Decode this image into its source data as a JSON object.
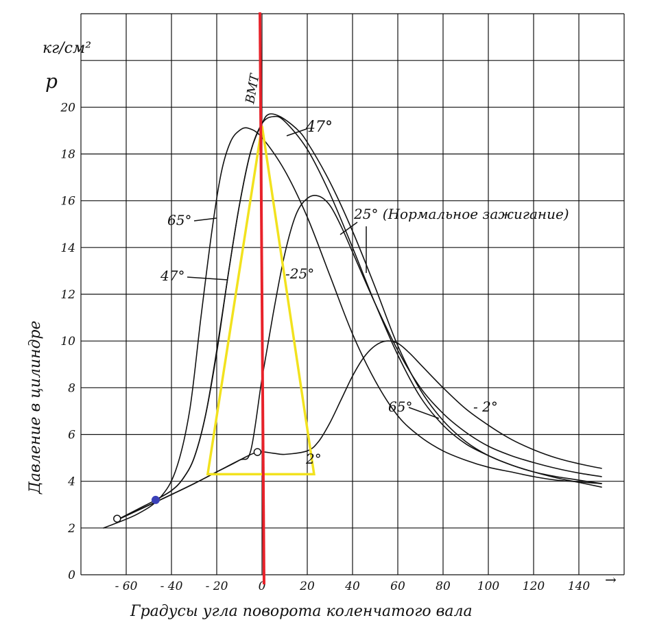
{
  "chart_data": {
    "type": "line",
    "units_label": "кг/см²",
    "p_label": "p",
    "ylabel": "Давление в цилиндре",
    "xlabel": "Градусы угла поворота коленчатого вала",
    "tdc_label": "ВМТ",
    "xlim": [
      -80,
      160
    ],
    "ylim": [
      0,
      24
    ],
    "x_ticks": [
      -60,
      -40,
      -20,
      0,
      20,
      40,
      60,
      80,
      100,
      120,
      140
    ],
    "x_tick_labels": [
      "- 60",
      "- 40",
      "- 20",
      "0",
      "20",
      "40",
      "60",
      "80",
      "100",
      "120",
      "140"
    ],
    "y_ticks": [
      0,
      2,
      4,
      6,
      8,
      10,
      12,
      14,
      16,
      18,
      20
    ],
    "y_tick_labels": [
      "0",
      "2",
      "4",
      "6",
      "8",
      "10",
      "12",
      "14",
      "16",
      "18",
      "20"
    ],
    "axis_arrow": "→",
    "grid": true,
    "tdc_line": {
      "x": 0,
      "color": "#e8222a"
    },
    "series": [
      {
        "name": "65°",
        "color": "#111111",
        "x": [
          -70,
          -55,
          -45,
          -38,
          -32,
          -27,
          -22,
          -18,
          -14,
          -10,
          -6,
          0,
          10,
          20,
          30,
          40,
          50,
          60,
          70,
          80,
          90,
          100,
          110,
          120,
          130,
          150
        ],
        "y": [
          2.0,
          2.6,
          3.3,
          4.5,
          7.0,
          11.0,
          14.8,
          17.2,
          18.5,
          19.0,
          19.1,
          18.7,
          17.3,
          15.3,
          12.8,
          10.3,
          8.3,
          6.8,
          5.9,
          5.3,
          4.9,
          4.6,
          4.4,
          4.2,
          4.05,
          3.9
        ]
      },
      {
        "name": "47°",
        "color": "#111111",
        "x": [
          -65,
          -55,
          -47,
          -40,
          -35,
          -30,
          -25,
          -20,
          -15,
          -10,
          -5,
          0,
          5,
          10,
          20,
          30,
          40,
          50,
          60,
          70,
          80,
          90,
          100,
          110,
          120,
          130,
          140,
          150
        ],
        "y": [
          2.3,
          2.8,
          3.2,
          3.6,
          4.1,
          5.0,
          6.8,
          9.5,
          12.8,
          15.8,
          18.1,
          19.3,
          19.6,
          19.4,
          18.2,
          16.3,
          14.0,
          11.6,
          9.4,
          7.6,
          6.4,
          5.6,
          5.1,
          4.7,
          4.4,
          4.2,
          4.05,
          3.9
        ]
      },
      {
        "name": "25° (Нормальное зажигание)",
        "color": "#111111",
        "x": [
          -65,
          -45,
          -30,
          -20,
          -10,
          -5,
          0,
          5,
          10,
          15,
          20,
          25,
          30,
          35,
          40,
          50,
          60,
          70,
          80,
          90,
          100,
          110,
          120,
          130,
          140,
          150
        ],
        "y": [
          2.3,
          3.2,
          3.9,
          4.4,
          4.9,
          5.3,
          8.4,
          11.2,
          13.7,
          15.4,
          16.1,
          16.2,
          15.8,
          14.9,
          13.8,
          11.6,
          9.6,
          8.0,
          6.9,
          6.1,
          5.5,
          5.1,
          4.8,
          4.55,
          4.35,
          4.2
        ]
      },
      {
        "name": "2°",
        "color": "#111111",
        "x": [
          -65,
          -45,
          -30,
          -20,
          -10,
          -2,
          5,
          10,
          20,
          25,
          30,
          35,
          40,
          45,
          50,
          55,
          60,
          65,
          70,
          80,
          90,
          100,
          110,
          120,
          130,
          140,
          150
        ],
        "y": [
          2.3,
          3.2,
          3.9,
          4.4,
          4.9,
          5.25,
          5.2,
          5.15,
          5.3,
          5.7,
          6.5,
          7.5,
          8.5,
          9.3,
          9.8,
          10.0,
          9.9,
          9.5,
          9.0,
          8.0,
          7.1,
          6.4,
          5.8,
          5.35,
          5.0,
          4.75,
          4.55
        ]
      },
      {
        "name": "47° (blue)",
        "color": "#3a40b8",
        "x": [
          -47,
          -40,
          -35,
          -30,
          -25,
          -20,
          -15,
          -10,
          -5,
          0,
          3,
          8,
          15,
          20,
          30,
          40,
          50,
          60,
          70,
          80,
          90,
          100,
          110,
          120,
          130,
          140,
          150
        ],
        "y": [
          3.2,
          3.6,
          4.1,
          5.0,
          6.8,
          9.6,
          12.8,
          15.8,
          18.1,
          19.3,
          19.7,
          19.6,
          19.1,
          18.5,
          16.8,
          14.7,
          12.3,
          9.8,
          7.9,
          6.6,
          5.7,
          5.1,
          4.7,
          4.4,
          4.15,
          3.95,
          3.75
        ]
      }
    ],
    "markers": [
      {
        "x": -64,
        "y": 2.4
      },
      {
        "x": -2,
        "y": 5.25
      }
    ],
    "blue_marker": {
      "x": -47,
      "y": 3.2,
      "color": "#3a40b8"
    },
    "triangle": {
      "color": "#f2e21e",
      "points": [
        [
          -24,
          4.3
        ],
        [
          0,
          19.2
        ],
        [
          23,
          4.3
        ]
      ]
    },
    "annotations": [
      "65°",
      "47°",
      "-25°",
      "2°",
      "65°",
      "- 2°",
      "47°",
      "25° (Нормальное зажигание)"
    ]
  }
}
